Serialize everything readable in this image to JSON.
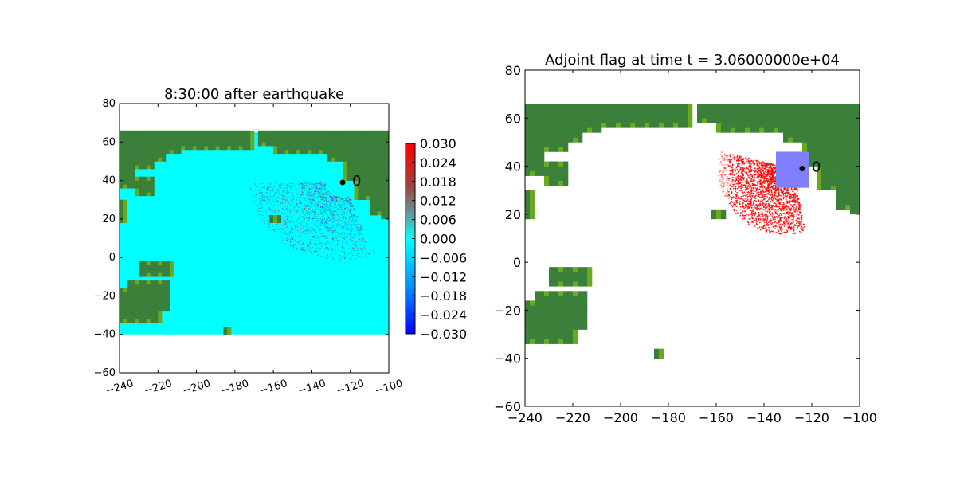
{
  "chart_data": [
    {
      "type": "heatmap",
      "title": "8:30:00 after earthquake",
      "xlim": [
        -240,
        -100
      ],
      "ylim": [
        -60,
        80
      ],
      "x_ticks": [
        "−240",
        "−220",
        "−200",
        "−180",
        "−160",
        "−140",
        "−120",
        "−100"
      ],
      "y_ticks": [
        "80",
        "60",
        "40",
        "20",
        "0",
        "−20",
        "−40",
        "−60"
      ],
      "domain": {
        "x": [
          -240,
          -100
        ],
        "y": [
          -40,
          65
        ]
      },
      "source_point": {
        "label": "0",
        "x": -124,
        "y": 39
      },
      "colorbar": {
        "ticks": [
          "0.030",
          "0.024",
          "0.018",
          "0.012",
          "0.006",
          "0.000",
          "−0.006",
          "−0.012",
          "−0.018",
          "−0.024",
          "−0.030"
        ],
        "range": [
          -0.03,
          0.03
        ]
      },
      "colors": {
        "water": "#00ffff",
        "land": "#3a7f3a",
        "shallow": "#6aa820",
        "wave_pos": "#e00020",
        "wave_neg": "#2040ff"
      }
    },
    {
      "type": "heatmap",
      "title": "Adjoint flag at time t = 3.06000000e+04",
      "xlim": [
        -240,
        -100
      ],
      "ylim": [
        -60,
        80
      ],
      "x_ticks": [
        "−240",
        "−220",
        "−200",
        "−180",
        "−160",
        "−140",
        "−120",
        "−100"
      ],
      "y_ticks": [
        "80",
        "60",
        "40",
        "20",
        "0",
        "−20",
        "−40",
        "−60"
      ],
      "domain": {
        "x": [
          -240,
          -100
        ],
        "y": [
          -40,
          65
        ]
      },
      "source_point": {
        "label": "0",
        "x": -124,
        "y": 39
      },
      "flag_region": {
        "x": [
          -135,
          -121
        ],
        "y": [
          31,
          46
        ]
      },
      "colors": {
        "land": "#3a7f3a",
        "shallow": "#6aa820",
        "flag": "#ff0000",
        "region": "#8080ff"
      }
    }
  ]
}
